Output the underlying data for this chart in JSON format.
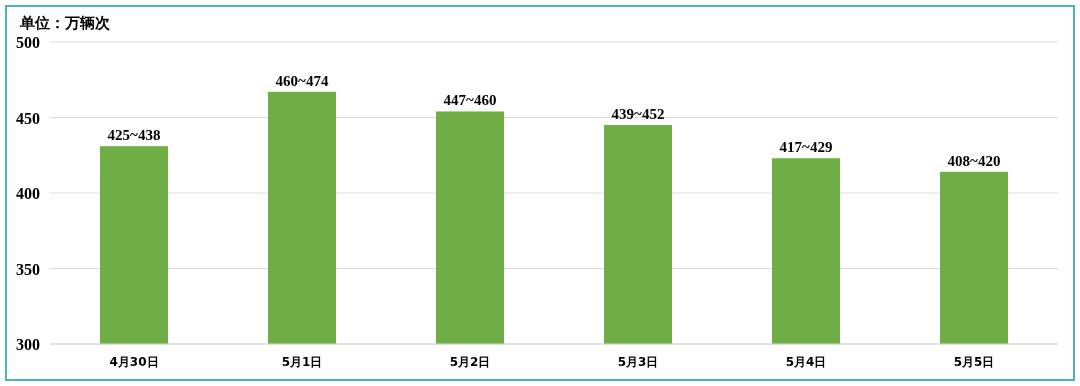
{
  "chart_data": {
    "type": "bar",
    "ylabel": "单位：万辆次",
    "categories": [
      "4月30日",
      "5月1日",
      "5月2日",
      "5月3日",
      "5月4日",
      "5月5日"
    ],
    "values": [
      431,
      467,
      454,
      445,
      423,
      414
    ],
    "annotations": [
      {
        "text": "425~438",
        "x": "4月30日",
        "y": 431
      },
      {
        "text": "460~474",
        "x": "5月1日",
        "y": 467
      },
      {
        "text": "447~460",
        "x": "5月2日",
        "y": 454
      },
      {
        "text": "439~452",
        "x": "5月3日",
        "y": 445
      },
      {
        "text": "417~429",
        "x": "5月4日",
        "y": 423
      },
      {
        "text": "408~420",
        "x": "5月5日",
        "y": 414
      }
    ],
    "color": "#6fae45",
    "ylim": [
      300,
      500
    ],
    "yticks": [
      300,
      350,
      400,
      450,
      500
    ],
    "grid": "y"
  }
}
